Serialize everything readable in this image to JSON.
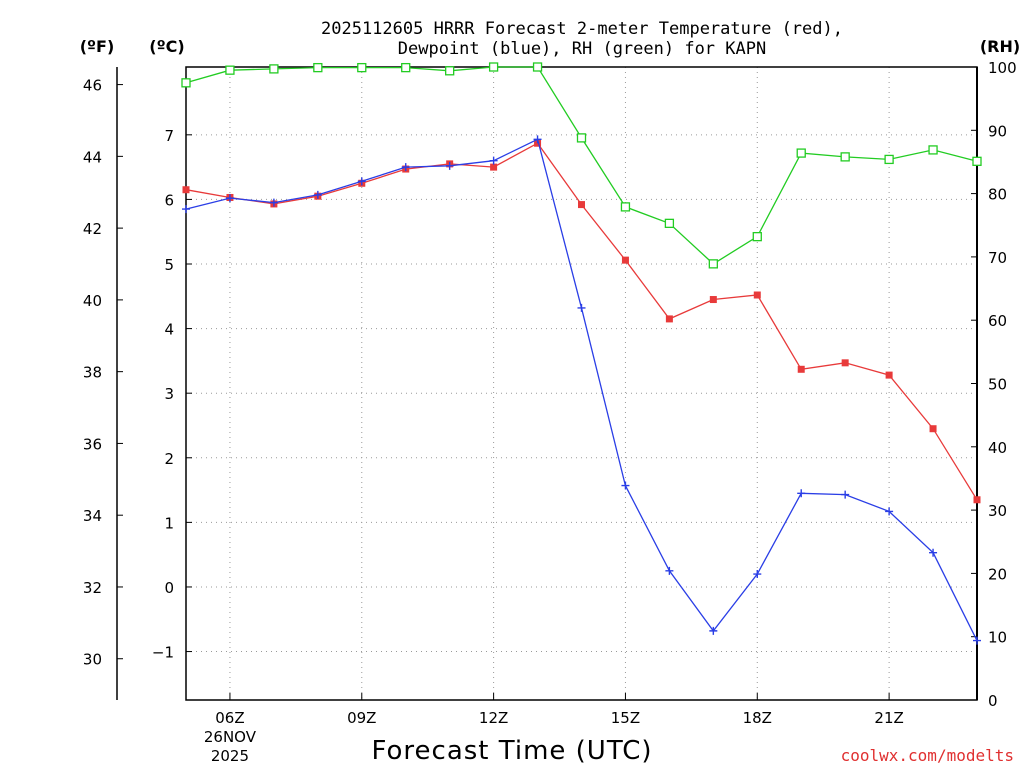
{
  "chart_data": {
    "type": "line",
    "title_line1": "2025112605 HRRR Forecast 2-meter Temperature (red),",
    "title_line2": "Dewpoint (blue), RH (green) for KAPN",
    "xlabel": "Forecast Time (UTC)",
    "credit": "coolwx.com/modelts",
    "units": {
      "fahrenheit": "(ºF)",
      "celsius": "(ºC)",
      "rh": "(RH)"
    },
    "x": [
      5,
      6,
      7,
      8,
      9,
      10,
      11,
      12,
      13,
      14,
      15,
      16,
      17,
      18,
      19,
      20,
      21,
      22,
      23
    ],
    "xlim": [
      5,
      23
    ],
    "x_ticks": [
      {
        "x": 6,
        "label": "06Z",
        "date": "26NOV",
        "year": "2025"
      },
      {
        "x": 9,
        "label": "09Z"
      },
      {
        "x": 12,
        "label": "12Z"
      },
      {
        "x": 15,
        "label": "15Z"
      },
      {
        "x": 18,
        "label": "18Z"
      },
      {
        "x": 21,
        "label": "21Z"
      }
    ],
    "celsius_axis": {
      "lim": [
        -1.75,
        8.05
      ],
      "ticks": [
        -1,
        0,
        1,
        2,
        3,
        4,
        5,
        6,
        7
      ],
      "tick_labels": [
        "−1",
        "0",
        "1",
        "2",
        "3",
        "4",
        "5",
        "6",
        "7"
      ]
    },
    "fahrenheit_axis": {
      "ticks": [
        30,
        32,
        34,
        36,
        38,
        40,
        42,
        44,
        46
      ],
      "tick_labels": [
        "30",
        "32",
        "34",
        "36",
        "38",
        "40",
        "42",
        "44",
        "46"
      ]
    },
    "rh_axis": {
      "lim": [
        0,
        100
      ],
      "ticks": [
        0,
        10,
        20,
        30,
        40,
        50,
        60,
        70,
        80,
        90,
        100
      ],
      "tick_labels": [
        "0",
        "10",
        "20",
        "30",
        "40",
        "50",
        "60",
        "70",
        "80",
        "90",
        "100"
      ]
    },
    "series": [
      {
        "name": "Temperature",
        "axis": "celsius",
        "color": "#e83a3a",
        "marker": "filled-square",
        "values": [
          6.15,
          6.03,
          5.93,
          6.05,
          6.25,
          6.47,
          6.55,
          6.5,
          6.87,
          5.92,
          5.06,
          4.15,
          4.45,
          4.52,
          3.37,
          3.47,
          3.28,
          2.45,
          1.35
        ]
      },
      {
        "name": "Dewpoint",
        "axis": "celsius",
        "color": "#2a3ee6",
        "marker": "plus",
        "values": [
          5.85,
          6.02,
          5.95,
          6.07,
          6.28,
          6.5,
          6.52,
          6.6,
          6.93,
          4.32,
          1.57,
          0.25,
          -0.68,
          0.2,
          1.45,
          1.43,
          1.17,
          0.53,
          -0.83
        ]
      },
      {
        "name": "RH",
        "axis": "rh",
        "color": "#22cc22",
        "marker": "open-square",
        "values": [
          97.5,
          99.5,
          99.7,
          99.9,
          99.9,
          99.9,
          99.4,
          100,
          100,
          88.8,
          77.9,
          75.3,
          68.9,
          73.2,
          86.4,
          85.8,
          85.4,
          86.9,
          85.1
        ]
      }
    ]
  }
}
